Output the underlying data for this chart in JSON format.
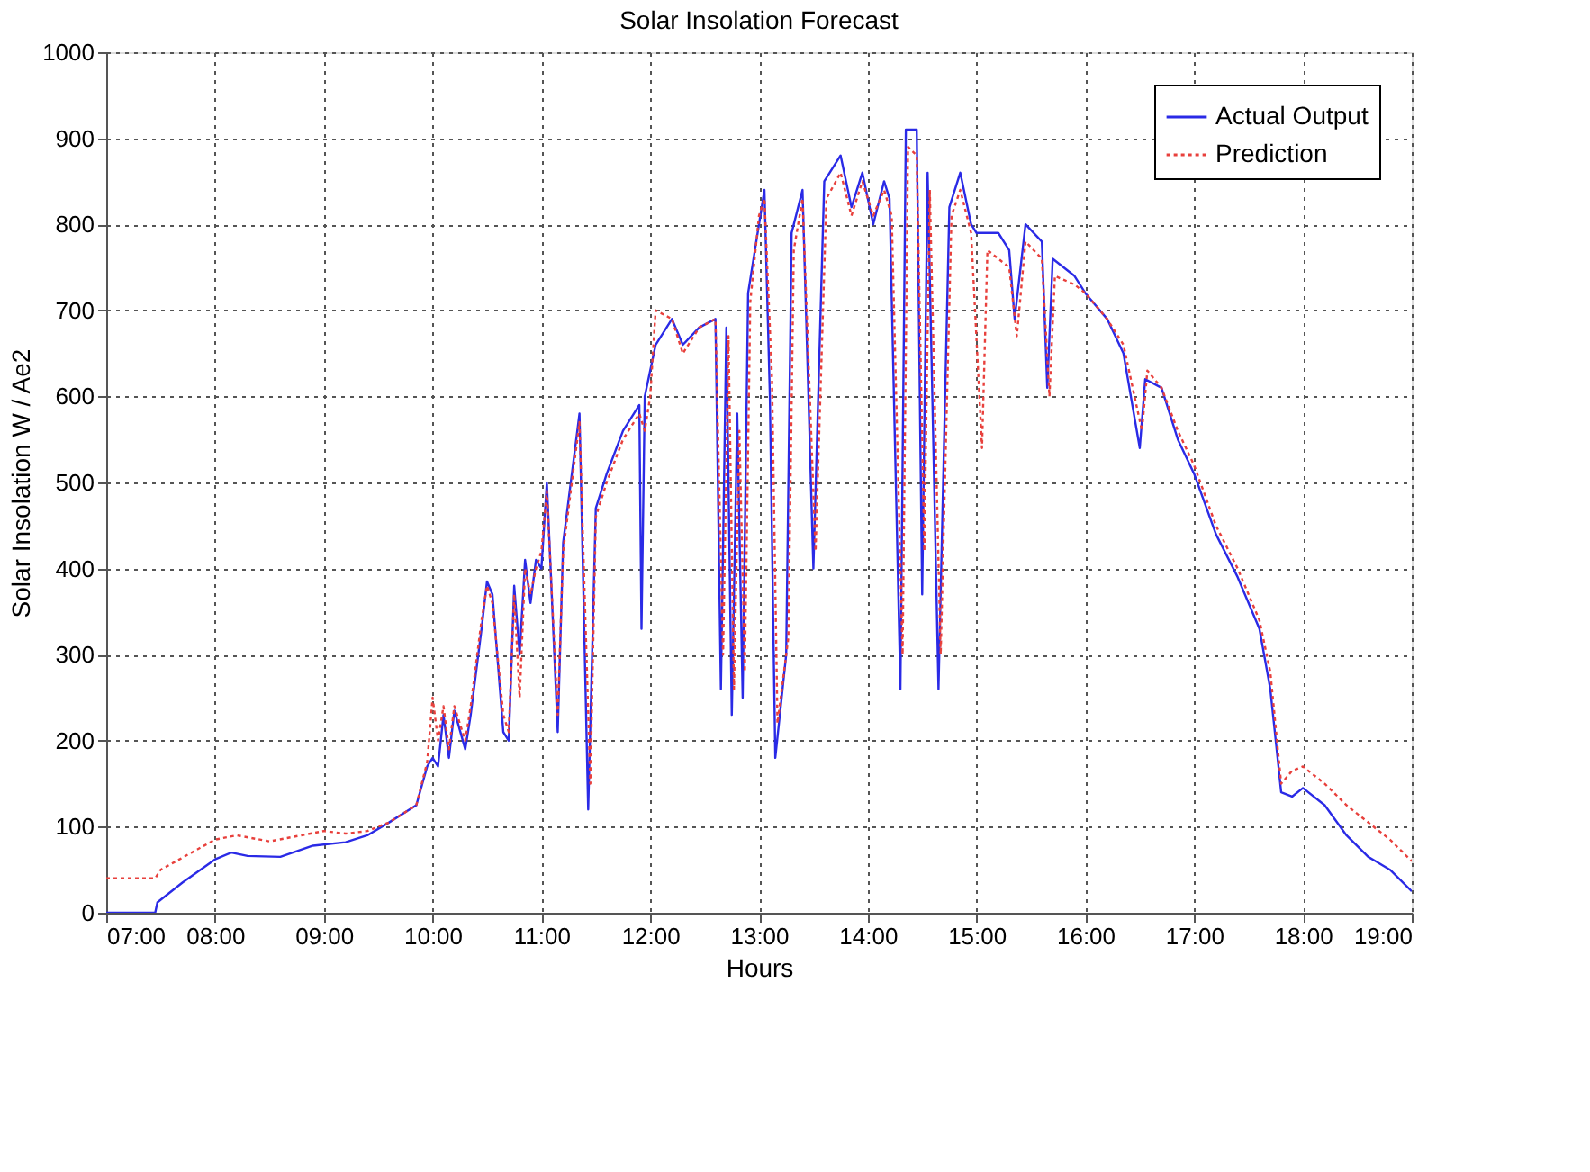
{
  "chart_data": {
    "type": "line",
    "title": "Solar Insolation Forecast",
    "xlabel": "Hours",
    "ylabel": "Solar Insolation W / Ae2",
    "xlim": [
      7,
      19
    ],
    "ylim": [
      0,
      1000
    ],
    "xticks": [
      {
        "value": 7,
        "label": "07:00"
      },
      {
        "value": 8,
        "label": "08:00"
      },
      {
        "value": 9,
        "label": "09:00"
      },
      {
        "value": 10,
        "label": "10:00"
      },
      {
        "value": 11,
        "label": "11:00"
      },
      {
        "value": 12,
        "label": "12:00"
      },
      {
        "value": 13,
        "label": "13:00"
      },
      {
        "value": 14,
        "label": "14:00"
      },
      {
        "value": 15,
        "label": "15:00"
      },
      {
        "value": 16,
        "label": "16:00"
      },
      {
        "value": 17,
        "label": "17:00"
      },
      {
        "value": 18,
        "label": "18:00"
      },
      {
        "value": 19,
        "label": "19:00"
      }
    ],
    "yticks": [
      0,
      100,
      200,
      300,
      400,
      500,
      600,
      700,
      800,
      900,
      1000
    ],
    "grid": true,
    "legend": "top right",
    "series": [
      {
        "name": "Actual Output",
        "color": "#2a2ae6",
        "line_style": "solid",
        "x": [
          7.0,
          7.45,
          7.47,
          7.7,
          8.0,
          8.15,
          8.3,
          8.6,
          8.9,
          9.2,
          9.4,
          9.6,
          9.85,
          9.95,
          10.0,
          10.05,
          10.1,
          10.15,
          10.2,
          10.3,
          10.35,
          10.45,
          10.5,
          10.55,
          10.65,
          10.7,
          10.75,
          10.8,
          10.85,
          10.9,
          10.95,
          11.0,
          11.05,
          11.15,
          11.2,
          11.3,
          11.35,
          11.43,
          11.5,
          11.6,
          11.75,
          11.9,
          11.92,
          11.95,
          12.05,
          12.2,
          12.3,
          12.45,
          12.6,
          12.65,
          12.7,
          12.75,
          12.8,
          12.85,
          12.9,
          13.0,
          13.05,
          13.1,
          13.15,
          13.25,
          13.3,
          13.4,
          13.5,
          13.6,
          13.75,
          13.85,
          13.95,
          14.05,
          14.15,
          14.2,
          14.3,
          14.35,
          14.45,
          14.5,
          14.55,
          14.65,
          14.75,
          14.85,
          14.95,
          15.0,
          15.2,
          15.3,
          15.35,
          15.45,
          15.6,
          15.65,
          15.7,
          15.9,
          16.0,
          16.2,
          16.35,
          16.5,
          16.55,
          16.7,
          16.85,
          17.0,
          17.2,
          17.4,
          17.6,
          17.7,
          17.8,
          17.9,
          18.0,
          18.2,
          18.4,
          18.6,
          18.8,
          19.0
        ],
        "values": [
          0,
          0,
          12,
          35,
          62,
          70,
          66,
          65,
          78,
          82,
          90,
          105,
          125,
          170,
          180,
          170,
          230,
          180,
          235,
          190,
          230,
          330,
          385,
          370,
          210,
          200,
          380,
          300,
          410,
          360,
          410,
          400,
          500,
          210,
          430,
          530,
          580,
          120,
          470,
          510,
          560,
          590,
          330,
          600,
          660,
          690,
          660,
          680,
          690,
          260,
          680,
          230,
          580,
          250,
          720,
          800,
          840,
          600,
          180,
          300,
          790,
          840,
          400,
          850,
          880,
          820,
          860,
          800,
          850,
          830,
          260,
          910,
          910,
          370,
          860,
          260,
          820,
          860,
          800,
          790,
          790,
          770,
          690,
          800,
          780,
          610,
          760,
          740,
          720,
          690,
          650,
          540,
          620,
          610,
          550,
          510,
          440,
          390,
          330,
          260,
          140,
          135,
          145,
          125,
          90,
          65,
          50,
          25
        ]
      },
      {
        "name": "Prediction",
        "color": "#e8403c",
        "line_style": "dotted",
        "x": [
          7.0,
          7.45,
          7.5,
          8.0,
          8.2,
          8.5,
          9.0,
          9.2,
          9.4,
          9.6,
          9.85,
          9.95,
          10.0,
          10.05,
          10.1,
          10.15,
          10.2,
          10.3,
          10.35,
          10.45,
          10.5,
          10.55,
          10.65,
          10.7,
          10.75,
          10.8,
          10.85,
          10.9,
          10.95,
          11.0,
          11.05,
          11.15,
          11.2,
          11.3,
          11.35,
          11.45,
          11.5,
          11.6,
          11.75,
          11.9,
          11.95,
          12.0,
          12.05,
          12.2,
          12.3,
          12.45,
          12.6,
          12.67,
          12.72,
          12.77,
          12.82,
          12.87,
          12.92,
          13.0,
          13.05,
          13.12,
          13.17,
          13.27,
          13.32,
          13.4,
          13.52,
          13.62,
          13.75,
          13.85,
          13.95,
          14.05,
          14.15,
          14.22,
          14.32,
          14.37,
          14.45,
          14.52,
          14.57,
          14.67,
          14.77,
          14.85,
          14.95,
          15.05,
          15.1,
          15.2,
          15.3,
          15.37,
          15.45,
          15.6,
          15.67,
          15.72,
          15.9,
          16.0,
          16.2,
          16.35,
          16.52,
          16.57,
          16.7,
          16.85,
          17.0,
          17.2,
          17.4,
          17.6,
          17.7,
          17.8,
          17.9,
          18.0,
          18.2,
          18.4,
          18.6,
          18.8,
          19.0
        ],
        "values": [
          40,
          40,
          50,
          85,
          90,
          83,
          95,
          92,
          95,
          105,
          125,
          175,
          250,
          200,
          240,
          190,
          240,
          200,
          240,
          340,
          380,
          360,
          230,
          210,
          370,
          250,
          400,
          370,
          400,
          420,
          490,
          230,
          420,
          520,
          570,
          150,
          460,
          500,
          550,
          580,
          560,
          600,
          700,
          690,
          650,
          680,
          690,
          300,
          670,
          260,
          560,
          280,
          710,
          810,
          830,
          620,
          220,
          320,
          770,
          830,
          420,
          830,
          860,
          810,
          850,
          810,
          840,
          810,
          300,
          890,
          880,
          420,
          840,
          300,
          810,
          840,
          790,
          540,
          770,
          760,
          750,
          670,
          780,
          760,
          600,
          740,
          730,
          720,
          690,
          660,
          560,
          630,
          610,
          560,
          520,
          450,
          400,
          340,
          280,
          150,
          165,
          170,
          150,
          125,
          105,
          85,
          60
        ]
      }
    ]
  }
}
